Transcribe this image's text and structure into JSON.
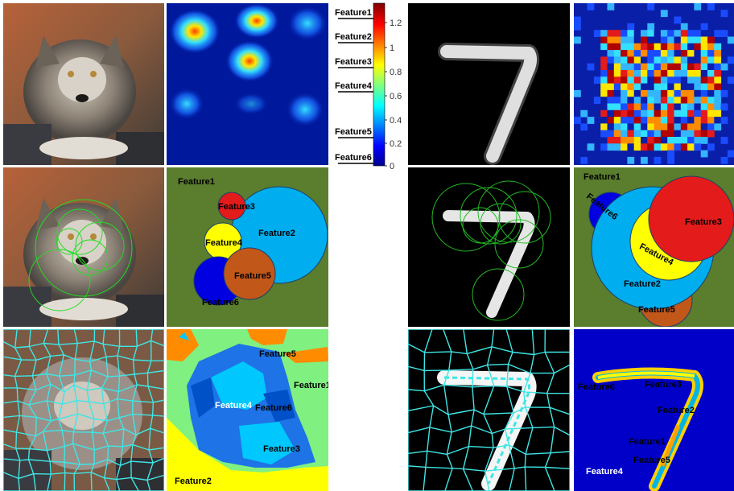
{
  "colorbar": {
    "ticks": [
      "1.2",
      "1",
      "0.8",
      "0.6",
      "0.4",
      "0.2",
      "0"
    ],
    "features": [
      "Feature1",
      "Feature2",
      "Feature3",
      "Feature4",
      "Feature5",
      "Feature6"
    ]
  },
  "wolf_bubbles": {
    "labels": [
      "Feature1",
      "Feature2",
      "Feature3",
      "Feature4",
      "Feature5",
      "Feature6"
    ],
    "bg": "#5a7d2e"
  },
  "digit_bubbles": {
    "labels": [
      "Feature1",
      "Feature6",
      "Feature3",
      "Feature4",
      "Feature2",
      "Feature5"
    ],
    "bg": "#5a7d2e"
  },
  "wolf_segments": {
    "labels": [
      "Feature5",
      "Feature1",
      "Feature4",
      "Feature6",
      "Feature3",
      "Feature2"
    ]
  },
  "digit_segments": {
    "labels": [
      "Feature6",
      "Feature3",
      "Feature2",
      "Feature1",
      "Feature5",
      "Feature4"
    ]
  },
  "colors": {
    "bubble_red": "#e31b1b",
    "bubble_cyan": "#00aeef",
    "bubble_yellow": "#ffff00",
    "bubble_orange": "#c2571a",
    "bubble_blue": "#0000e0",
    "segment_line": "#3ee6e6",
    "heat_bg": "#00189c"
  }
}
